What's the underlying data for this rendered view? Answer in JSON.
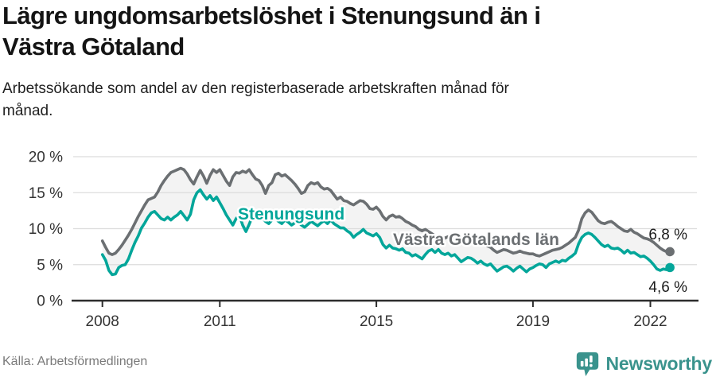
{
  "header": {
    "title": "Lägre ungdomsarbetslöshet i Stenungsund än i Västra Götaland",
    "title_lines": [
      "Lägre ungdomsarbetslöshet i Stenungsund än i",
      "Västra Götaland"
    ],
    "subtitle": "Arbetssökande som andel av den registerbaserade arbetskraften månad för månad.",
    "subtitle_lines": [
      "Arbetssökande som andel av den registerbaserade arbetskraften månad för",
      "månad."
    ]
  },
  "footer": {
    "source": "Källa: Arbetsförmedlingen",
    "brand": "Newsworthy"
  },
  "colors": {
    "stenungsund": "#03a69a",
    "region": "#6b6f72",
    "grid": "#dcdcdc",
    "axis": "#2d2d2d",
    "area_fill": "#f3f3f3",
    "tick_text": "#333333",
    "end_label_text": "#1b1b1b",
    "brand": "#3a938d"
  },
  "chart_data": {
    "type": "line",
    "title": "Lägre ungdomsarbetslöshet i Stenungsund än i Västra Götaland",
    "subtitle": "Arbetssökande som andel av den registerbaserade arbetskraften månad för månad.",
    "unit": "%",
    "frequency": "monthly",
    "x_start": "2008-01",
    "x_end": "2022-07",
    "ylim": [
      0,
      20
    ],
    "grid": true,
    "legend_position": "inline-labels",
    "y_ticks": [
      {
        "value": 0,
        "label": "0 %"
      },
      {
        "value": 5,
        "label": "5 %"
      },
      {
        "value": 10,
        "label": "10 %"
      },
      {
        "value": 15,
        "label": "15 %"
      },
      {
        "value": 20,
        "label": "20 %"
      }
    ],
    "x_ticks": [
      {
        "index": 0,
        "label": "2008"
      },
      {
        "index": 36,
        "label": "2011"
      },
      {
        "index": 84,
        "label": "2015"
      },
      {
        "index": 132,
        "label": "2019"
      },
      {
        "index": 168,
        "label": "2022"
      }
    ],
    "series": [
      {
        "name": "Västra Götalands län",
        "color": "#6b6f72",
        "end_value": 6.8,
        "end_label": "6,8 %",
        "values": [
          8.3,
          7.4,
          6.6,
          6.4,
          6.6,
          7.1,
          7.7,
          8.4,
          9.1,
          9.9,
          10.8,
          11.7,
          12.5,
          13.3,
          14.0,
          14.2,
          14.4,
          15.1,
          16.0,
          16.7,
          17.3,
          17.8,
          18.0,
          18.2,
          18.4,
          18.2,
          17.6,
          16.8,
          16.2,
          17.2,
          18.1,
          17.3,
          16.3,
          17.4,
          18.2,
          17.8,
          18.2,
          17.4,
          16.6,
          16.0,
          17.2,
          17.8,
          17.7,
          18.0,
          17.8,
          18.2,
          17.5,
          16.9,
          16.7,
          16.0,
          14.9,
          16.0,
          16.4,
          17.5,
          17.7,
          17.3,
          17.5,
          17.1,
          16.7,
          16.2,
          15.6,
          14.9,
          15.1,
          16.0,
          16.4,
          16.2,
          16.4,
          15.8,
          15.5,
          15.6,
          15.3,
          14.7,
          14.1,
          14.4,
          13.9,
          13.8,
          13.5,
          13.3,
          13.6,
          13.9,
          13.8,
          13.4,
          12.8,
          12.7,
          13.0,
          12.5,
          11.7,
          11.2,
          11.7,
          11.9,
          11.6,
          11.7,
          11.4,
          11.0,
          10.8,
          10.5,
          10.3,
          9.9,
          9.7,
          9.9,
          9.6,
          9.3,
          9.0,
          8.8,
          8.4,
          8.7,
          8.9,
          8.7,
          8.8,
          8.6,
          8.4,
          8.6,
          8.8,
          8.6,
          8.4,
          8.2,
          8.0,
          7.8,
          7.6,
          7.4,
          7.0,
          6.7,
          6.9,
          7.1,
          7.0,
          6.8,
          6.6,
          6.7,
          6.9,
          6.7,
          6.6,
          6.5,
          6.5,
          6.3,
          6.2,
          6.4,
          6.6,
          6.8,
          7.0,
          7.1,
          7.2,
          7.4,
          7.7,
          8.0,
          8.4,
          8.8,
          9.8,
          11.4,
          12.2,
          12.6,
          12.3,
          11.7,
          11.1,
          10.8,
          10.7,
          10.9,
          11.0,
          10.7,
          10.3,
          10.0,
          9.7,
          9.6,
          9.9,
          9.5,
          9.3,
          9.0,
          8.7,
          8.6,
          8.4,
          8.1,
          7.7,
          7.3,
          7.0,
          6.8,
          6.8
        ]
      },
      {
        "name": "Stenungsund",
        "color": "#03a69a",
        "end_value": 4.6,
        "end_label": "4,6 %",
        "values": [
          6.4,
          5.6,
          4.2,
          3.6,
          3.7,
          4.6,
          4.9,
          5.0,
          5.8,
          7.0,
          8.1,
          9.0,
          10.1,
          10.8,
          11.6,
          12.2,
          12.4,
          11.9,
          11.4,
          11.2,
          11.6,
          11.2,
          11.6,
          11.9,
          12.4,
          11.8,
          11.2,
          12.0,
          14.0,
          15.0,
          15.4,
          14.7,
          14.1,
          14.6,
          13.9,
          14.4,
          13.6,
          12.8,
          11.9,
          11.2,
          10.5,
          11.4,
          11.9,
          10.5,
          9.6,
          10.6,
          11.7,
          12.2,
          12.0,
          11.6,
          11.0,
          10.7,
          11.2,
          11.5,
          11.0,
          10.7,
          11.2,
          10.9,
          10.5,
          10.8,
          11.0,
          10.5,
          10.2,
          10.6,
          11.0,
          10.7,
          10.4,
          10.8,
          11.1,
          10.7,
          11.2,
          10.7,
          10.4,
          10.1,
          10.1,
          9.7,
          9.4,
          8.8,
          9.2,
          9.5,
          9.9,
          9.4,
          9.2,
          9.0,
          9.3,
          8.8,
          7.8,
          7.3,
          7.7,
          7.3,
          7.2,
          7.0,
          7.2,
          6.7,
          6.6,
          6.2,
          6.4,
          6.1,
          5.8,
          6.4,
          6.9,
          7.1,
          6.7,
          7.1,
          6.6,
          6.4,
          6.6,
          6.2,
          6.4,
          5.9,
          5.4,
          5.7,
          6.0,
          5.9,
          5.6,
          5.2,
          5.5,
          5.1,
          4.9,
          5.1,
          4.6,
          4.1,
          4.4,
          4.7,
          4.8,
          4.5,
          4.1,
          4.5,
          4.8,
          4.4,
          4.0,
          4.4,
          4.6,
          4.9,
          5.1,
          5.0,
          4.6,
          5.1,
          5.3,
          5.5,
          5.3,
          5.6,
          5.5,
          5.9,
          6.2,
          6.6,
          7.9,
          8.8,
          9.2,
          9.4,
          9.2,
          8.8,
          8.3,
          7.8,
          7.5,
          7.7,
          7.3,
          7.2,
          7.3,
          7.0,
          6.6,
          7.0,
          6.6,
          6.7,
          6.4,
          6.1,
          6.2,
          5.9,
          5.5,
          5.0,
          4.4,
          4.2,
          4.4,
          4.3,
          4.6
        ]
      }
    ]
  }
}
